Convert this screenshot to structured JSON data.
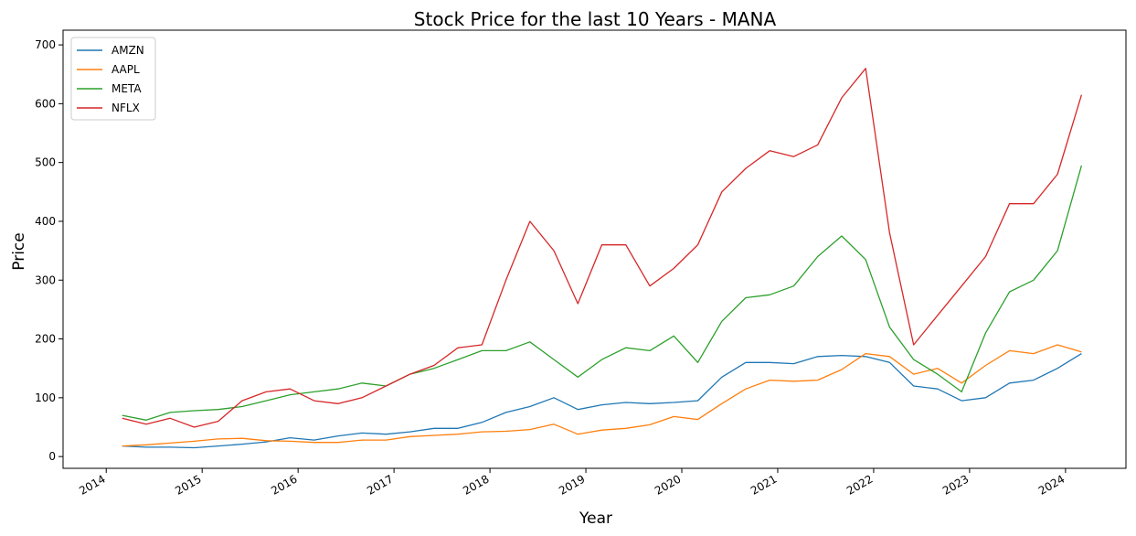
{
  "chart_data": {
    "type": "line",
    "title": "Stock Price for the last 10 Years - MANA",
    "xlabel": "Year",
    "ylabel": "Price",
    "x": [
      "2014-03",
      "2014-06",
      "2014-09",
      "2014-12",
      "2015-03",
      "2015-06",
      "2015-09",
      "2015-12",
      "2016-03",
      "2016-06",
      "2016-09",
      "2016-12",
      "2017-03",
      "2017-06",
      "2017-09",
      "2017-12",
      "2018-03",
      "2018-06",
      "2018-09",
      "2018-12",
      "2019-03",
      "2019-06",
      "2019-09",
      "2019-12",
      "2020-03",
      "2020-06",
      "2020-09",
      "2020-12",
      "2021-03",
      "2021-06",
      "2021-09",
      "2021-12",
      "2022-03",
      "2022-06",
      "2022-09",
      "2022-12",
      "2023-03",
      "2023-06",
      "2023-09",
      "2023-12",
      "2024-03"
    ],
    "x_ticks": [
      "2014",
      "2015",
      "2016",
      "2017",
      "2018",
      "2019",
      "2020",
      "2021",
      "2022",
      "2023",
      "2024"
    ],
    "ylim": [
      -20,
      725
    ],
    "y_ticks": [
      0,
      100,
      200,
      300,
      400,
      500,
      600,
      700
    ],
    "grid": false,
    "legend": "upper-left",
    "series": [
      {
        "name": "AMZN",
        "color": "#1f77b4",
        "values": [
          18,
          16,
          16,
          15,
          18,
          21,
          25,
          32,
          28,
          35,
          40,
          38,
          42,
          48,
          48,
          58,
          75,
          85,
          100,
          80,
          88,
          92,
          90,
          92,
          95,
          135,
          160,
          160,
          158,
          170,
          172,
          170,
          160,
          120,
          115,
          95,
          100,
          125,
          130,
          150,
          175
        ]
      },
      {
        "name": "AAPL",
        "color": "#ff7f0e",
        "values": [
          18,
          20,
          23,
          26,
          30,
          31,
          27,
          26,
          24,
          24,
          28,
          28,
          34,
          36,
          38,
          42,
          43,
          46,
          55,
          38,
          45,
          48,
          54,
          68,
          63,
          90,
          115,
          130,
          128,
          130,
          148,
          175,
          170,
          140,
          150,
          125,
          155,
          180,
          175,
          190,
          178
        ]
      },
      {
        "name": "META",
        "color": "#2ca02c",
        "values": [
          70,
          62,
          75,
          78,
          80,
          85,
          95,
          105,
          110,
          115,
          125,
          120,
          140,
          150,
          165,
          180,
          180,
          195,
          165,
          135,
          165,
          185,
          180,
          205,
          160,
          230,
          270,
          275,
          290,
          340,
          375,
          335,
          220,
          165,
          140,
          110,
          210,
          280,
          300,
          350,
          495
        ]
      },
      {
        "name": "NFLX",
        "color": "#d62728",
        "values": [
          65,
          55,
          65,
          50,
          60,
          95,
          110,
          115,
          95,
          90,
          100,
          120,
          140,
          155,
          185,
          190,
          300,
          400,
          350,
          260,
          360,
          360,
          290,
          320,
          360,
          450,
          490,
          520,
          510,
          530,
          610,
          660,
          380,
          190,
          240,
          290,
          340,
          430,
          430,
          480,
          615
        ]
      }
    ]
  }
}
